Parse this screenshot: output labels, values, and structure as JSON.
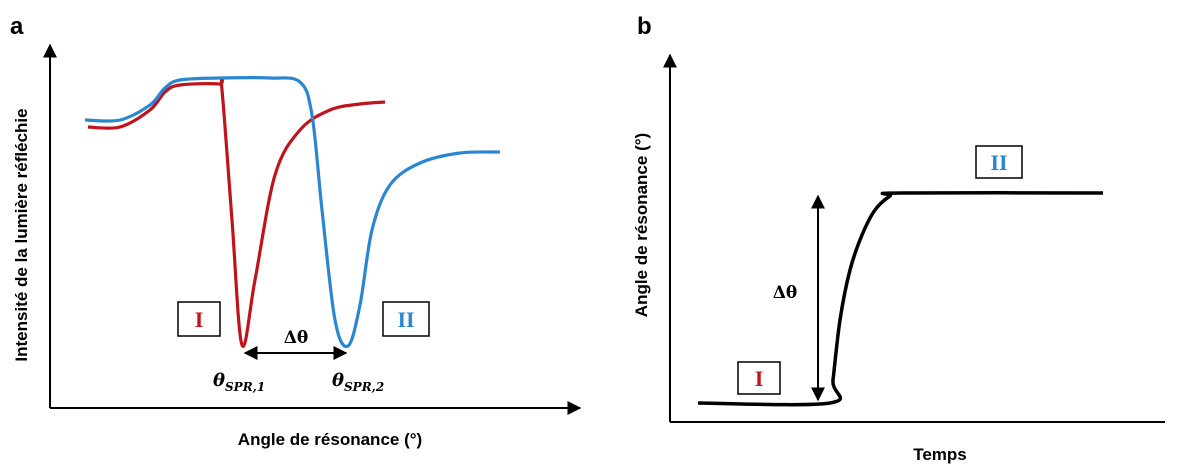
{
  "chart_data": [
    {
      "panel": "a",
      "type": "line",
      "xlabel": "Angle de résonance (°)",
      "ylabel": "Intensité de la lumière réfléchie",
      "series": [
        {
          "label_box": "I",
          "color": "#c0141c",
          "x": [
            88,
            120,
            150,
            165,
            180,
            219,
            222,
            232,
            242,
            255,
            275,
            300,
            330,
            360,
            385
          ],
          "y": [
            127,
            127,
            110,
            92,
            85,
            84,
            90,
            220,
            345,
            280,
            175,
            130,
            110,
            104,
            102
          ]
        },
        {
          "label_box": "II",
          "color": "#2a86d0",
          "x": [
            85,
            120,
            150,
            165,
            180,
            220,
            270,
            300,
            312,
            322,
            335,
            348,
            360,
            372,
            390,
            420,
            460,
            500
          ],
          "y": [
            120,
            120,
            105,
            88,
            80,
            78,
            78,
            82,
            115,
            210,
            320,
            346,
            305,
            230,
            185,
            163,
            153,
            152
          ]
        }
      ],
      "annotations": {
        "box_I": "I",
        "box_II": "II",
        "delta": "Δθ",
        "theta1_main": "θ",
        "theta1_sub": "SPR,1",
        "theta2_main": "θ",
        "theta2_sub": "SPR,2"
      }
    },
    {
      "panel": "b",
      "type": "line",
      "xlabel": "Temps",
      "ylabel": "Angle de résonance (°)",
      "series": [
        {
          "color": "#000000",
          "x": [
            698,
            830,
            833,
            840,
            850,
            862,
            875,
            890,
            900,
            1103
          ],
          "y": [
            403,
            403,
            380,
            320,
            270,
            235,
            210,
            196,
            193,
            193
          ]
        }
      ],
      "annotations": {
        "box_I": "I",
        "box_II": "II",
        "delta": "Δθ"
      }
    }
  ],
  "colors": {
    "red": "#c0141c",
    "blue": "#2a86d0",
    "black": "#000000"
  }
}
